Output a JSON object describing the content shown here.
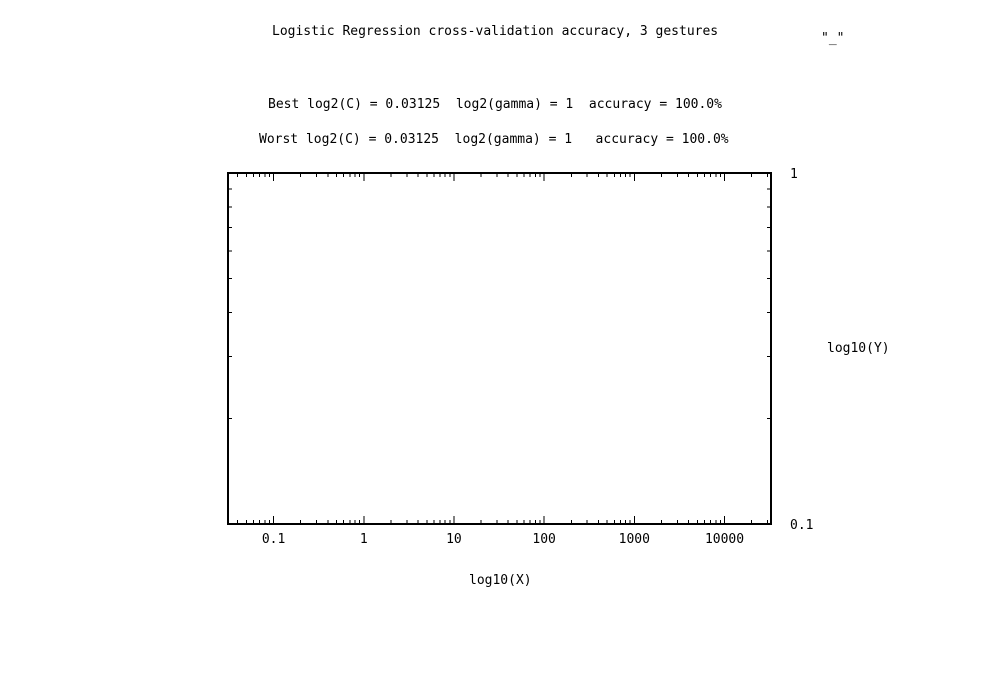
{
  "chart_data": {
    "type": "scatter",
    "title": "Logistic Regression cross-validation accuracy, 3 gestures",
    "legend_label": "\"_\"",
    "annotations": [
      "Best log2(C) = 0.03125  log2(gamma) = 1  accuracy = 100.0%",
      "Worst log2(C) = 0.03125  log2(gamma) = 1   accuracy = 100.0%"
    ],
    "xlabel": "log10(X)",
    "ylabel": "log10(Y)",
    "xscale": "log",
    "yscale": "log",
    "xlim": [
      0.03125,
      32768
    ],
    "ylim": [
      0.1,
      1
    ],
    "xticks": [
      {
        "value": 0.1,
        "label": "0.1"
      },
      {
        "value": 1,
        "label": "1"
      },
      {
        "value": 10,
        "label": "10"
      },
      {
        "value": 100,
        "label": "100"
      },
      {
        "value": 1000,
        "label": "1000"
      },
      {
        "value": 10000,
        "label": "10000"
      }
    ],
    "yticks": [
      {
        "value": 1,
        "label": "1"
      },
      {
        "value": 0.1,
        "label": "0.1"
      }
    ],
    "series": [],
    "grid": false,
    "legend_position": "top-right"
  }
}
